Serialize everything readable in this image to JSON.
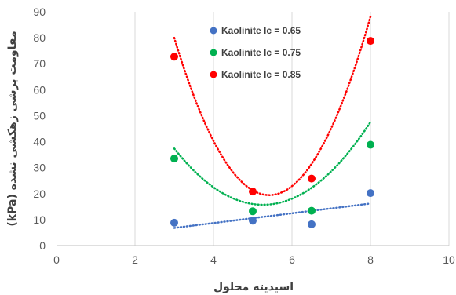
{
  "chart_data": {
    "type": "scatter",
    "xlabel": "اسیدیته محلول",
    "ylabel": "مقاومت برشی زهکشی نشده (kPa)",
    "xlim": [
      0,
      10
    ],
    "ylim": [
      0,
      90
    ],
    "xticks": [
      "0",
      "2",
      "4",
      "6",
      "8",
      "10"
    ],
    "yticks": [
      "0",
      "10",
      "20",
      "30",
      "40",
      "50",
      "60",
      "70",
      "80",
      "90"
    ],
    "grid": "vertical",
    "legend_position": "top-center",
    "series": [
      {
        "name": "Kaolinite Ic = 0.65",
        "color": "#4472C4",
        "x": [
          3,
          5,
          6.5,
          8
        ],
        "y": [
          8.8,
          9.6,
          8.2,
          20.2
        ],
        "trendline": {
          "type": "linear",
          "from": [
            3,
            6.8
          ],
          "to": [
            8,
            16.2
          ]
        }
      },
      {
        "name": "Kaolinite Ic = 0.75",
        "color": "#00B050",
        "x": [
          3,
          5,
          6.5,
          8
        ],
        "y": [
          33.5,
          13.2,
          13.4,
          38.8
        ],
        "trendline": {
          "type": "polynomial",
          "coef": [
            133.0,
            -44.6,
            4.24
          ]
        }
      },
      {
        "name": "Kaolinite Ic = 0.85",
        "color": "#FF0000",
        "x": [
          3,
          5,
          6.5,
          8
        ],
        "y": [
          72.7,
          20.8,
          25.8,
          78.8
        ],
        "trendline": {
          "type": "polynomial",
          "coef": [
            323.0,
            -112.0,
            10.33
          ]
        }
      }
    ]
  }
}
